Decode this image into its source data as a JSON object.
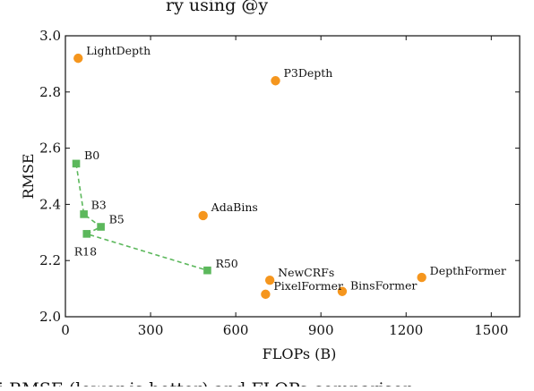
{
  "chart_data": {
    "type": "scatter",
    "title": "",
    "xlabel": "FLOPs (B)",
    "ylabel": "RMSE",
    "xlim": [
      0,
      1600
    ],
    "ylim": [
      2.0,
      3.0
    ],
    "xticks": [
      0,
      300,
      600,
      900,
      1200,
      1500
    ],
    "yticks": [
      "2.0",
      "2.2",
      "2.4",
      "2.6",
      "2.8",
      "3.0"
    ],
    "grid": false,
    "series": [
      {
        "marker": "circle",
        "color": "#f5961e",
        "points": [
          {
            "label": "LightDepth",
            "x": 45,
            "y": 2.92
          },
          {
            "label": "P3Depth",
            "x": 740,
            "y": 2.84
          },
          {
            "label": "AdaBins",
            "x": 485,
            "y": 2.36
          },
          {
            "label": "NewCRFs",
            "x": 720,
            "y": 2.13
          },
          {
            "label": "PixelFormer",
            "x": 705,
            "y": 2.08
          },
          {
            "label": "BinsFormer",
            "x": 975,
            "y": 2.09
          },
          {
            "label": "DepthFormer",
            "x": 1255,
            "y": 2.14
          }
        ]
      },
      {
        "marker": "square",
        "line": "dashed",
        "color": "#5cb85c",
        "points": [
          {
            "label": "B0",
            "x": 38,
            "y": 2.545
          },
          {
            "label": "B3",
            "x": 65,
            "y": 2.365
          },
          {
            "label": "B5",
            "x": 125,
            "y": 2.32
          },
          {
            "label": "R18",
            "x": 75,
            "y": 2.295
          },
          {
            "label": "R50",
            "x": 500,
            "y": 2.165
          }
        ]
      }
    ]
  },
  "header_fragment": "ry using @y",
  "caption_fragment": "i           RMSE (lower is better) and FLOPs comparison"
}
